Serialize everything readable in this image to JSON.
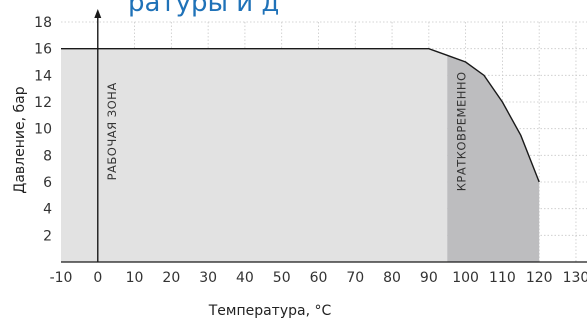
{
  "chart_data": {
    "type": "area",
    "title_fragment": "ратуры и д",
    "xlabel": "Температура, °C",
    "ylabel": "Давление, бар",
    "x_ticks": [
      -10,
      0,
      10,
      20,
      30,
      40,
      50,
      60,
      70,
      80,
      90,
      100,
      110,
      120,
      130
    ],
    "y_ticks": [
      2,
      4,
      6,
      8,
      10,
      12,
      14,
      16,
      18
    ],
    "xlim": [
      -10,
      133
    ],
    "ylim": [
      0,
      18
    ],
    "grid": true,
    "series": [
      {
        "x": [
          -10,
          90,
          95,
          100,
          105,
          110,
          115,
          120
        ],
        "y": [
          16,
          16,
          15.5,
          15,
          14,
          12,
          9.5,
          6
        ]
      }
    ],
    "zones": [
      {
        "label": "РАБОЧАЯ ЗОНА",
        "x_from": -10,
        "x_to": 95,
        "color": "#e2e2e2"
      },
      {
        "label": "КРАТКОВРЕМЕННО",
        "x_from": 95,
        "x_to": 120,
        "color": "#bdbdbf"
      }
    ],
    "colors": {
      "curve": "#1a1a1a",
      "axis": "#1a1a1a",
      "grid": "#c8c8c8",
      "title": "#1f72b8"
    }
  }
}
